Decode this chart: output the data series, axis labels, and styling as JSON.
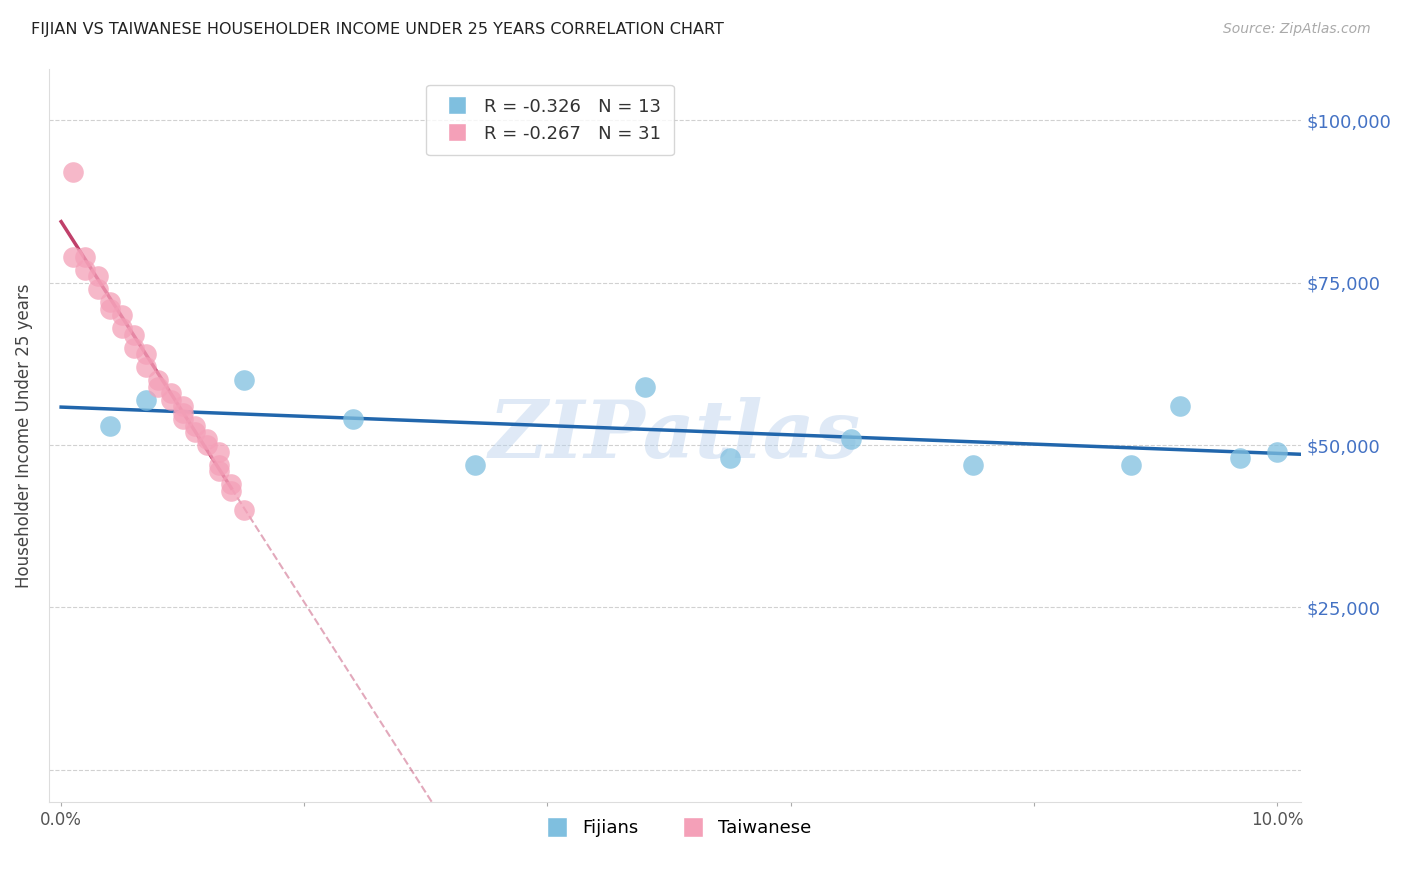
{
  "title": "FIJIAN VS TAIWANESE HOUSEHOLDER INCOME UNDER 25 YEARS CORRELATION CHART",
  "source": "Source: ZipAtlas.com",
  "ylabel": "Householder Income Under 25 years",
  "ytick_values": [
    0,
    25000,
    50000,
    75000,
    100000
  ],
  "ytick_labels": [
    "",
    "$25,000",
    "$50,000",
    "$75,000",
    "$100,000"
  ],
  "xlim": [
    -0.001,
    0.102
  ],
  "ylim": [
    -5000,
    108000
  ],
  "fijian_x": [
    0.004,
    0.007,
    0.015,
    0.024,
    0.034,
    0.048,
    0.055,
    0.065,
    0.075,
    0.088,
    0.092,
    0.097,
    0.1
  ],
  "fijian_y": [
    53000,
    57000,
    60000,
    54000,
    47000,
    59000,
    48000,
    51000,
    47000,
    47000,
    56000,
    48000,
    49000
  ],
  "taiwanese_x": [
    0.001,
    0.001,
    0.002,
    0.002,
    0.003,
    0.003,
    0.004,
    0.004,
    0.005,
    0.005,
    0.006,
    0.006,
    0.007,
    0.007,
    0.008,
    0.008,
    0.009,
    0.009,
    0.01,
    0.01,
    0.01,
    0.011,
    0.011,
    0.012,
    0.012,
    0.013,
    0.013,
    0.013,
    0.014,
    0.014,
    0.015
  ],
  "taiwanese_y": [
    92000,
    79000,
    79000,
    77000,
    76000,
    74000,
    72000,
    71000,
    70000,
    68000,
    67000,
    65000,
    64000,
    62000,
    60000,
    59000,
    58000,
    57000,
    56000,
    55000,
    54000,
    53000,
    52000,
    51000,
    50000,
    49000,
    47000,
    46000,
    44000,
    43000,
    40000
  ],
  "fijian_color": "#7fbfdf",
  "taiwanese_color": "#f4a0b8",
  "fijian_line_color": "#2166ac",
  "taiwanese_line_color": "#c0406a",
  "fijian_R": -0.326,
  "fijian_N": 13,
  "taiwanese_R": -0.267,
  "taiwanese_N": 31,
  "watermark": "ZIPatlas",
  "background_color": "#ffffff",
  "axis_label_color": "#4472c4",
  "grid_color": "#cccccc",
  "tw_line_end_solid": 0.014,
  "tw_line_start_dash": 0.014,
  "tw_line_end_dash": 0.102
}
